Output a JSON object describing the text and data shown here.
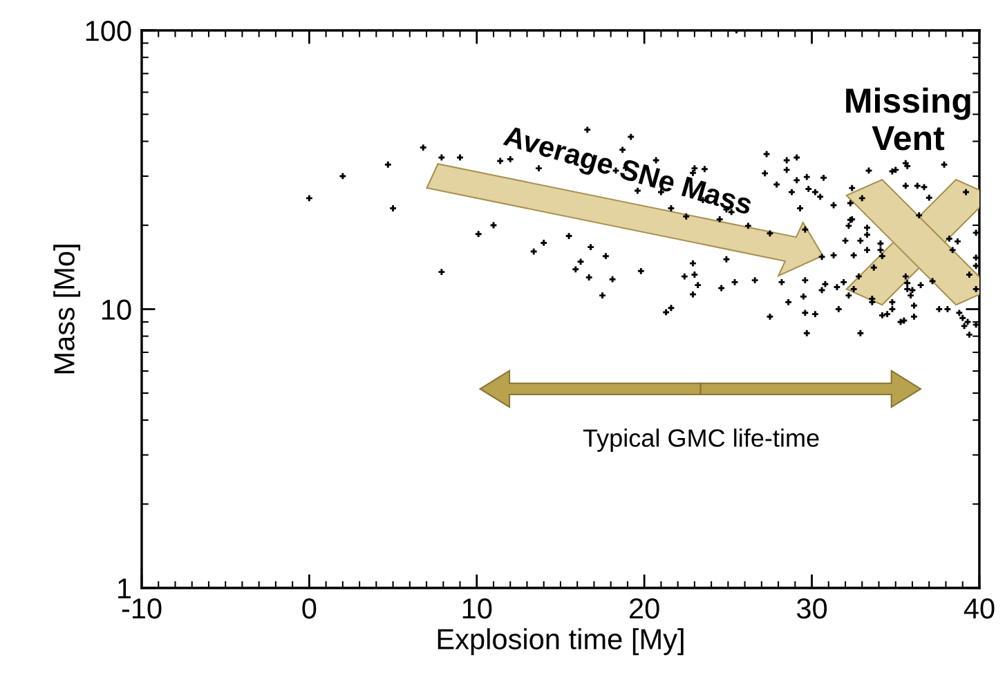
{
  "chart_data": {
    "type": "scatter",
    "xlabel": "Explosion time [My]",
    "ylabel": "Mass [Mo]",
    "xlim": [
      -10,
      40
    ],
    "xticks": [
      -10,
      0,
      10,
      20,
      30,
      40
    ],
    "ylim": [
      1,
      100
    ],
    "yticks": [
      1,
      10,
      100
    ],
    "log": "y",
    "grid": false,
    "marker": "cross",
    "annotations": [
      "Average SNe Mass",
      "Missing Vent",
      "Typical GMC life-time"
    ],
    "series": [
      {
        "color": "#000000",
        "x": [
          0,
          2.0,
          4.7,
          5.0,
          6.8,
          7.9,
          9.0,
          7.9,
          11.4,
          12.0,
          13.7,
          11.0,
          10.1,
          14.0,
          13.4,
          25.5,
          16.6,
          19.2,
          18.7,
          20.7,
          18.3,
          18.9,
          23.0,
          23.6,
          22.9,
          27.3,
          27.2,
          19.6,
          21.0,
          23.5,
          21.6,
          22.5,
          24.5,
          24.9,
          25.2,
          26.2,
          27.5,
          15.5,
          16.8,
          17.7,
          16.2,
          15.9,
          16.7,
          18.1,
          19.8,
          17.5,
          22.9,
          22.4,
          23.0,
          23.2,
          22.9,
          24.6,
          25.4,
          26.6,
          24.9,
          21.3,
          21.6,
          27.5,
          28.5,
          29.1,
          28.5,
          29.7,
          30.7,
          29.1,
          27.9,
          29.8,
          30.2,
          30.5,
          28.8,
          29.3,
          31.3,
          29.6,
          30.6,
          31.3,
          28.2,
          29.6,
          30.6,
          30.8,
          31.5,
          31.9,
          29.5,
          28.6,
          29.6,
          30.2,
          31.6,
          29.7,
          32.9,
          32.2,
          32.5,
          32.8,
          32.5,
          32.0,
          32.9,
          33.3,
          32.2,
          32.3,
          32.4,
          33.3,
          33.3,
          32.3,
          32.4,
          33.0,
          33.4,
          34.8,
          35.0,
          35.6,
          35.7,
          37.9,
          35.6,
          36.3,
          36.7,
          37.0,
          39.2,
          36.4,
          38.2,
          38.7,
          38.4,
          39.8,
          39.8,
          39.8,
          39.4,
          39.8,
          37.2,
          36.5,
          35.7,
          36.0,
          35.9,
          36.1,
          34.8,
          34.8,
          33.6,
          33.6,
          34.2,
          34.5,
          36.1,
          35.5,
          35.3,
          37.6,
          38.1,
          38.8,
          39.0,
          39.1,
          39.3,
          39.4,
          39.8,
          34.1,
          34.1,
          34.2,
          33.7,
          35.6,
          35.7
        ],
        "values": [
          25,
          30,
          33,
          23,
          38,
          13.6,
          35,
          35,
          34,
          34.5,
          32,
          20,
          18.6,
          17.3,
          16.1,
          100,
          44,
          41.5,
          37.3,
          34.2,
          31.4,
          32.1,
          32,
          31.8,
          30.8,
          36,
          30.7,
          26.6,
          26.3,
          24.6,
          23,
          21.5,
          21,
          22.8,
          22.3,
          19.9,
          18.7,
          18.3,
          16.7,
          15.5,
          14.8,
          13.9,
          13.0,
          12.8,
          13.7,
          11.2,
          14.6,
          13.1,
          13.3,
          12.2,
          11.3,
          11.9,
          12.5,
          12.7,
          15.1,
          9.75,
          10.1,
          9.4,
          34.2,
          35,
          31.6,
          29.8,
          29.6,
          29,
          28,
          27,
          26.3,
          25.3,
          26.3,
          23,
          23.6,
          19.3,
          15.4,
          15.6,
          12.5,
          12.7,
          11.7,
          12.3,
          12.0,
          12.5,
          11.1,
          10.6,
          9.7,
          9.6,
          10.0,
          8.2,
          8.2,
          11.2,
          11.8,
          13.1,
          15.6,
          17.6,
          17.6,
          16.3,
          19.9,
          20.9,
          21,
          19.6,
          18.5,
          24,
          27.2,
          25,
          31.4,
          31.2,
          31.6,
          33.4,
          32.6,
          33,
          27.7,
          27.7,
          27.4,
          25.1,
          26.3,
          21.7,
          17.9,
          17.5,
          16.3,
          18.8,
          15.3,
          14.3,
          13.3,
          11.8,
          12.6,
          12.2,
          12.4,
          11.7,
          11.2,
          10.3,
          10.6,
          10.0,
          10.6,
          10.9,
          9.5,
          9.6,
          9.4,
          9.1,
          9.0,
          10.0,
          10.0,
          9.7,
          9.3,
          8.7,
          9.0,
          8.1,
          8.8,
          17.2,
          16.3,
          15.5,
          14.1,
          13.1,
          11.8
        ]
      }
    ]
  }
}
